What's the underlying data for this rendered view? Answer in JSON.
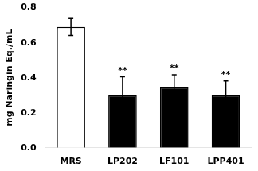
{
  "chart_data": {
    "type": "bar",
    "categories": [
      "MRS",
      "LP202",
      "LF101",
      "LPP401"
    ],
    "values": [
      0.69,
      0.3,
      0.345,
      0.3
    ],
    "errors": [
      0.048,
      0.105,
      0.072,
      0.082
    ],
    "colors": [
      "#ffffff",
      "#000000",
      "#000000",
      "#000000"
    ],
    "annotations": [
      {
        "x": "LP202",
        "text": "**"
      },
      {
        "x": "LF101",
        "text": "**"
      },
      {
        "x": "LPP401",
        "text": "**"
      }
    ],
    "ylabel": "mg Naringin Eq./mL",
    "ylim": [
      0,
      0.8
    ],
    "yticks": [
      {
        "value": 0,
        "label": "0.0"
      },
      0.2,
      0.4,
      0.6,
      0.8
    ],
    "grid": false
  }
}
